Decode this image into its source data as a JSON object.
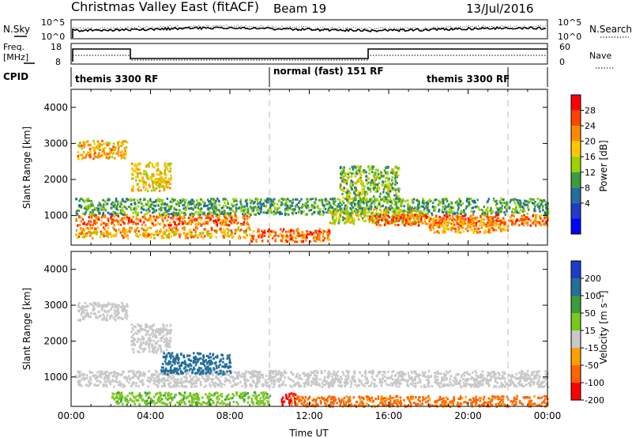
{
  "header": {
    "title": "Christmas Valley East (fitACF)",
    "beam": "Beam 19",
    "date": "13/Jul/2016"
  },
  "strip_noise": {
    "left_label": "N.Sky",
    "right_label": "N.Search",
    "left_ticks": [
      "10^5",
      "10^0"
    ],
    "right_ticks": [
      "10^5",
      "10^0"
    ]
  },
  "strip_freq": {
    "left_label_1": "Freq.",
    "left_label_2": "[MHz]",
    "right_label": "Nave",
    "left_ticks": [
      "18",
      "8"
    ],
    "right_ticks": [
      "60",
      "0"
    ]
  },
  "strip_cpid": {
    "label": "CPID",
    "segments": [
      {
        "label": "themis 3300 RF",
        "start_h": 0,
        "end_h": 10
      },
      {
        "label": "normal (fast) 151 RF",
        "start_h": 10,
        "end_h": 22
      },
      {
        "label": "themis 3300 RF",
        "start_h": 22,
        "end_h": 24
      }
    ]
  },
  "chart_data": [
    {
      "type": "heatmap",
      "panel": "power",
      "ylabel": "Slant Range [km]",
      "yticks": [
        "4000",
        "3000",
        "2000",
        "1000"
      ],
      "ylim": [
        180,
        4500
      ],
      "xlim": [
        0,
        24
      ],
      "colorbar": {
        "label": "Power [dB]",
        "tick_labels": [
          "28",
          "24",
          "20",
          "16",
          "12",
          "8",
          "4"
        ],
        "colors": [
          "#ff0000",
          "#ff4600",
          "#ff8c00",
          "#ffc800",
          "#9bd200",
          "#3c9b3c",
          "#236e9b",
          "#1e3cc8",
          "#0000ff"
        ]
      },
      "echo_regions": [
        {
          "x0": 0.3,
          "x1": 2.8,
          "y0": 2600,
          "y1": 3100,
          "value": 22
        },
        {
          "x0": 3.0,
          "x1": 5.0,
          "y0": 1700,
          "y1": 2500,
          "value": 20
        },
        {
          "x0": 0.2,
          "x1": 9.0,
          "y0": 750,
          "y1": 1050,
          "value": 26
        },
        {
          "x0": 0.2,
          "x1": 9.0,
          "y0": 400,
          "y1": 700,
          "value": 22
        },
        {
          "x0": 0.2,
          "x1": 24.0,
          "y0": 1050,
          "y1": 1500,
          "value": 12
        },
        {
          "x0": 9.0,
          "x1": 13.0,
          "y0": 300,
          "y1": 650,
          "value": 26
        },
        {
          "x0": 13.0,
          "x1": 18.0,
          "y0": 800,
          "y1": 1200,
          "value": 18
        },
        {
          "x0": 15.0,
          "x1": 24.0,
          "y0": 750,
          "y1": 1050,
          "value": 26
        },
        {
          "x0": 13.5,
          "x1": 16.5,
          "y0": 1400,
          "y1": 2400,
          "value": 14
        },
        {
          "x0": 18.0,
          "x1": 22.0,
          "y0": 550,
          "y1": 950,
          "value": 24
        }
      ]
    },
    {
      "type": "heatmap",
      "panel": "velocity",
      "ylabel": "Slant Range [km]",
      "xlabel": "Time UT",
      "yticks": [
        "4000",
        "3000",
        "2000",
        "1000"
      ],
      "xticks": [
        "00:00",
        "04:00",
        "08:00",
        "12:00",
        "16:00",
        "20:00",
        "00:00"
      ],
      "ylim": [
        180,
        4500
      ],
      "xlim": [
        0,
        24
      ],
      "colorbar": {
        "label": "Velocity [m s⁻¹]",
        "tick_labels": [
          "200",
          "100",
          "50",
          "15",
          "-15",
          "-50",
          "-100",
          "-200"
        ],
        "colors": [
          "#1e3cc8",
          "#236e9b",
          "#3c9b3c",
          "#78c81e",
          "#c8c8c8",
          "#ffa000",
          "#ff6400",
          "#ff0000"
        ]
      },
      "echo_regions": [
        {
          "x0": 0.3,
          "x1": 2.8,
          "y0": 2600,
          "y1": 3100,
          "value": 0
        },
        {
          "x0": 3.0,
          "x1": 5.0,
          "y0": 1700,
          "y1": 2500,
          "value": 0
        },
        {
          "x0": 0.2,
          "x1": 24.0,
          "y0": 750,
          "y1": 1200,
          "value": 0
        },
        {
          "x0": 4.5,
          "x1": 8.0,
          "y0": 1100,
          "y1": 1700,
          "value": 150
        },
        {
          "x0": 2.0,
          "x1": 10.0,
          "y0": 250,
          "y1": 600,
          "value": 40
        },
        {
          "x0": 10.5,
          "x1": 11.3,
          "y0": 250,
          "y1": 600,
          "value": -200
        },
        {
          "x0": 11.0,
          "x1": 24.0,
          "y0": 200,
          "y1": 500,
          "value": -60
        }
      ]
    }
  ]
}
